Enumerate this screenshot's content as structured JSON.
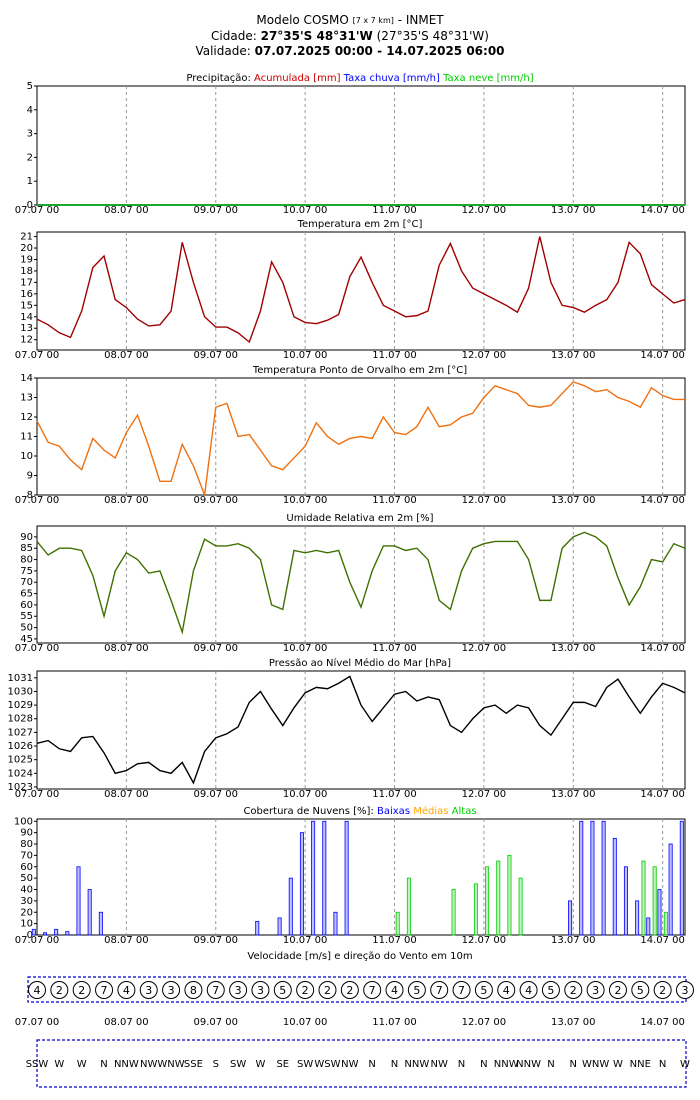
{
  "header": {
    "model": "Modelo COSMO",
    "resolution": "[7 x 7 km]",
    "source": "- INMET",
    "city_label": "Cidade:",
    "city": "27°35'S 48°31'W",
    "city_alt": "(27°35'S 48°31'W)",
    "validity_label": "Validade:",
    "validity": "07.07.2025 00:00 - 14.07.2025 06:00"
  },
  "time": {
    "x": [
      0,
      3,
      6,
      9,
      12,
      15,
      18,
      21,
      24,
      27,
      30,
      33,
      36,
      39,
      42,
      45,
      48,
      51,
      54,
      57,
      60,
      63,
      66,
      69,
      72,
      75,
      78,
      81,
      84,
      87,
      90,
      93,
      96,
      99,
      102,
      105,
      108,
      111,
      114,
      117,
      120,
      123,
      126,
      129,
      132,
      135,
      138,
      141,
      144,
      147,
      150,
      153,
      156,
      159,
      162,
      165,
      168,
      171,
      174
    ],
    "xlim": [
      0,
      174
    ],
    "xticks": [
      {
        "value": 0,
        "label": "07.07 00"
      },
      {
        "value": 24,
        "label": "08.07 00"
      },
      {
        "value": 48,
        "label": "09.07 00"
      },
      {
        "value": 72,
        "label": "10.07 00"
      },
      {
        "value": 96,
        "label": "11.07 00"
      },
      {
        "value": 120,
        "label": "12.07 00"
      },
      {
        "value": 144,
        "label": "13.07 00"
      },
      {
        "value": 168,
        "label": "14.07 00"
      }
    ],
    "grid": true
  },
  "chart_data": [
    {
      "type": "line",
      "title": "Precipitação:",
      "ylim": [
        0,
        5
      ],
      "yticks": [
        0,
        1,
        2,
        3,
        4,
        5
      ],
      "series": [
        {
          "name": "Acumulada [mm]",
          "color": "#cc0000",
          "values": [
            0,
            0,
            0,
            0,
            0,
            0,
            0,
            0,
            0,
            0,
            0,
            0,
            0,
            0,
            0,
            0,
            0,
            0,
            0,
            0,
            0,
            0,
            0,
            0,
            0,
            0,
            0,
            0,
            0,
            0,
            0,
            0,
            0,
            0,
            0,
            0,
            0,
            0,
            0,
            0,
            0,
            0,
            0,
            0,
            0,
            0,
            0,
            0,
            0,
            0,
            0,
            0,
            0,
            0,
            0,
            0,
            0,
            0,
            0
          ]
        },
        {
          "name": "Taxa chuva [mm/h]",
          "color": "#0000ff",
          "values": [
            0,
            0,
            0,
            0,
            0,
            0,
            0,
            0,
            0,
            0,
            0,
            0,
            0,
            0,
            0,
            0,
            0,
            0,
            0,
            0,
            0,
            0,
            0,
            0,
            0,
            0,
            0,
            0,
            0,
            0,
            0,
            0,
            0,
            0,
            0,
            0,
            0,
            0,
            0,
            0,
            0,
            0,
            0,
            0,
            0,
            0,
            0,
            0,
            0,
            0,
            0,
            0,
            0,
            0,
            0,
            0,
            0,
            0,
            0
          ]
        },
        {
          "name": "Taxa neve [mm/h]",
          "color": "#00cc00",
          "values": [
            0,
            0,
            0,
            0,
            0,
            0,
            0,
            0,
            0,
            0,
            0,
            0,
            0,
            0,
            0,
            0,
            0,
            0,
            0,
            0,
            0,
            0,
            0,
            0,
            0,
            0,
            0,
            0,
            0,
            0,
            0,
            0,
            0,
            0,
            0,
            0,
            0,
            0,
            0,
            0,
            0,
            0,
            0,
            0,
            0,
            0,
            0,
            0,
            0,
            0,
            0,
            0,
            0,
            0,
            0,
            0,
            0,
            0,
            0
          ]
        }
      ]
    },
    {
      "type": "line",
      "title": "Temperatura em 2m [°C]",
      "ylim": [
        11.1,
        21.4
      ],
      "yticks": [
        12,
        13,
        14,
        15,
        16,
        17,
        18,
        19,
        20,
        21
      ],
      "series": [
        {
          "color": "#a00000",
          "values": [
            13.8,
            13.3,
            12.6,
            12.2,
            14.5,
            18.3,
            19.3,
            15.5,
            14.8,
            13.8,
            13.2,
            13.3,
            14.5,
            20.5,
            17,
            14,
            13.1,
            13.1,
            12.6,
            11.8,
            14.5,
            18.8,
            17,
            14,
            13.5,
            13.4,
            13.7,
            14.2,
            17.5,
            19.2,
            17,
            15,
            14.5,
            14,
            14.1,
            14.5,
            18.5,
            20.4,
            18,
            16.5,
            16,
            15.5,
            15,
            14.4,
            16.5,
            21,
            17,
            15,
            14.8,
            14.4,
            15,
            15.5,
            17,
            20.5,
            19.5,
            16.8,
            16,
            15.2,
            15.5
          ]
        }
      ]
    },
    {
      "type": "line",
      "title": "Temperatura Ponto de Orvalho em 2m [°C]",
      "ylim": [
        8,
        14
      ],
      "yticks": [
        8,
        9,
        10,
        11,
        12,
        13,
        14
      ],
      "series": [
        {
          "color": "#f07010",
          "values": [
            11.8,
            10.7,
            10.5,
            9.8,
            9.3,
            10.9,
            10.3,
            9.9,
            11.2,
            12.1,
            10.5,
            8.7,
            8.7,
            10.6,
            9.5,
            8,
            12.5,
            12.7,
            11,
            11.1,
            10.3,
            9.5,
            9.3,
            9.9,
            10.5,
            11.7,
            11,
            10.6,
            10.9,
            11,
            10.9,
            12,
            11.2,
            11.1,
            11.5,
            12.5,
            11.5,
            11.6,
            12,
            12.2,
            13,
            13.6,
            13.4,
            13.2,
            12.6,
            12.5,
            12.6,
            13.2,
            13.8,
            13.6,
            13.3,
            13.4,
            13,
            12.8,
            12.5,
            13.5,
            13.1,
            12.9,
            12.9
          ]
        }
      ]
    },
    {
      "type": "line",
      "title": "Umidade Relativa em 2m [%]",
      "ylim": [
        43.2,
        94.8
      ],
      "yticks": [
        45,
        50,
        55,
        60,
        65,
        70,
        75,
        80,
        85,
        90
      ],
      "series": [
        {
          "color": "#407000",
          "values": [
            88,
            82,
            85,
            85,
            84,
            73,
            55,
            75,
            83,
            80,
            74,
            75,
            62,
            48,
            75,
            89,
            86,
            86,
            87,
            85,
            80,
            60,
            58,
            84,
            83,
            84,
            83,
            84,
            70,
            59,
            75,
            86,
            86,
            84,
            85,
            80,
            62,
            58,
            75,
            85,
            87,
            88,
            88,
            88,
            80,
            62,
            62,
            85,
            90,
            92,
            90,
            86,
            72,
            60,
            68,
            80,
            79,
            87,
            85
          ]
        }
      ]
    },
    {
      "type": "line",
      "title": "Pressão ao Nível Médio do Mar [hPa]",
      "ylim": [
        1022.85,
        1031.5
      ],
      "yticks": [
        1023,
        1024,
        1025,
        1026,
        1027,
        1028,
        1029,
        1030,
        1031
      ],
      "series": [
        {
          "color": "#000000",
          "values": [
            1026.2,
            1026.4,
            1025.8,
            1025.6,
            1026.6,
            1026.7,
            1025.5,
            1024,
            1024.2,
            1024.7,
            1024.8,
            1024.2,
            1024,
            1024.8,
            1023.3,
            1025.6,
            1026.6,
            1026.9,
            1027.4,
            1029.2,
            1030,
            1028.7,
            1027.5,
            1028.8,
            1029.9,
            1030.3,
            1030.2,
            1030.6,
            1031.1,
            1029,
            1027.8,
            1028.8,
            1029.8,
            1030,
            1029.3,
            1029.6,
            1029.4,
            1027.5,
            1027,
            1028,
            1028.8,
            1029,
            1028.4,
            1029,
            1028.8,
            1027.5,
            1026.8,
            1028,
            1029.2,
            1029.2,
            1028.9,
            1030.3,
            1030.9,
            1029.6,
            1028.4,
            1029.6,
            1030.6,
            1030.3,
            1029.9
          ]
        }
      ]
    },
    {
      "type": "bar",
      "title": "Cobertura de Nuvens [%]:",
      "ylim": [
        0,
        102
      ],
      "yticks": [
        0,
        10,
        20,
        30,
        40,
        50,
        60,
        70,
        80,
        90,
        100
      ],
      "series": [
        {
          "name": "Baixas",
          "color": "#0000ff",
          "values": [
            5,
            2,
            5,
            3,
            60,
            40,
            20,
            0,
            0,
            0,
            0,
            0,
            0,
            0,
            0,
            0,
            0,
            0,
            0,
            0,
            12,
            0,
            15,
            50,
            90,
            100,
            100,
            20,
            100,
            0,
            0,
            0,
            0,
            0,
            0,
            0,
            0,
            0,
            0,
            0,
            0,
            0,
            0,
            0,
            0,
            0,
            0,
            0,
            30,
            100,
            100,
            100,
            85,
            60,
            30,
            15,
            40,
            80,
            100
          ]
        },
        {
          "name": "Médias",
          "color": "#ffa500",
          "values": [
            0,
            0,
            0,
            0,
            0,
            0,
            0,
            0,
            0,
            0,
            0,
            0,
            0,
            0,
            0,
            0,
            0,
            0,
            0,
            0,
            0,
            0,
            0,
            0,
            0,
            0,
            0,
            0,
            0,
            0,
            0,
            0,
            0,
            0,
            0,
            0,
            0,
            0,
            0,
            0,
            0,
            0,
            0,
            0,
            0,
            0,
            0,
            0,
            0,
            0,
            0,
            0,
            0,
            0,
            0,
            0,
            0,
            0,
            0
          ]
        },
        {
          "name": "Altas",
          "color": "#00cc00",
          "values": [
            0,
            0,
            0,
            0,
            0,
            0,
            0,
            0,
            0,
            0,
            0,
            0,
            0,
            0,
            0,
            0,
            0,
            0,
            0,
            0,
            0,
            0,
            0,
            0,
            0,
            0,
            0,
            0,
            0,
            0,
            0,
            0,
            20,
            50,
            0,
            0,
            0,
            40,
            0,
            45,
            60,
            65,
            70,
            50,
            0,
            0,
            0,
            0,
            0,
            0,
            0,
            0,
            0,
            0,
            65,
            60,
            20,
            0,
            0
          ]
        }
      ]
    },
    {
      "type": "wind",
      "title": "Velocidade [m/s] e direção do Vento em 10m",
      "x": [
        0,
        6,
        12,
        18,
        24,
        30,
        36,
        42,
        48,
        54,
        60,
        66,
        72,
        78,
        84,
        90,
        96,
        102,
        108,
        114,
        120,
        126,
        132,
        138,
        144,
        150,
        156,
        162,
        168,
        174
      ],
      "values": [
        4,
        2,
        2,
        7,
        4,
        3,
        3,
        8,
        7,
        3,
        3,
        5,
        2,
        2,
        2,
        7,
        4,
        5,
        7,
        7,
        5,
        4,
        4,
        5,
        2,
        3,
        2,
        5,
        2,
        3
      ],
      "directions": [
        "SSW",
        "W",
        "W",
        "N",
        "NNW",
        "NW",
        "WNW",
        "SSE",
        "S",
        "SW",
        "W",
        "SE",
        "SW",
        "WSW",
        "NW",
        "N",
        "N",
        "NNW",
        "NW",
        "N",
        "N",
        "NNW",
        "NNW",
        "N",
        "N",
        "WNW",
        "W",
        "NNE",
        "N",
        "W"
      ],
      "color": "#0000cc"
    }
  ]
}
